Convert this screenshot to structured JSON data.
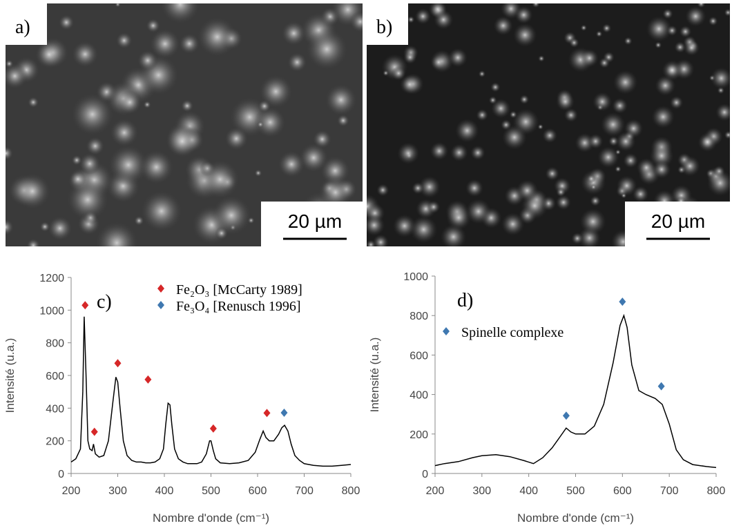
{
  "images": [
    {
      "label": "a)",
      "scale_bar": "20 µm"
    },
    {
      "label": "b)",
      "scale_bar": "20 µm"
    }
  ],
  "chart_data": [
    {
      "type": "line",
      "label": "c)",
      "xlabel": "Nombre d'onde (cm⁻¹)",
      "ylabel": "Intensité (u.a.)",
      "xlim": [
        200,
        800
      ],
      "xticks": [
        200,
        300,
        400,
        500,
        600,
        700,
        800
      ],
      "ylim": [
        0,
        1200
      ],
      "yticks": [
        0,
        200,
        400,
        600,
        800,
        1000,
        1200
      ],
      "series": [
        {
          "style": "line",
          "color": "#000000",
          "x": [
            200,
            210,
            220,
            225,
            228,
            232,
            236,
            240,
            245,
            248,
            252,
            260,
            270,
            280,
            290,
            296,
            300,
            305,
            312,
            320,
            330,
            340,
            350,
            360,
            370,
            380,
            390,
            398,
            403,
            408,
            412,
            416,
            422,
            430,
            440,
            450,
            460,
            470,
            480,
            490,
            497,
            500,
            505,
            510,
            520,
            540,
            560,
            580,
            595,
            605,
            612,
            618,
            625,
            635,
            645,
            652,
            658,
            665,
            672,
            680,
            690,
            700,
            720,
            740,
            760,
            780,
            800
          ],
          "values": [
            70,
            90,
            150,
            500,
            960,
            600,
            200,
            150,
            140,
            180,
            120,
            100,
            110,
            200,
            450,
            590,
            560,
            400,
            200,
            110,
            80,
            70,
            70,
            65,
            65,
            70,
            90,
            150,
            300,
            430,
            420,
            300,
            150,
            90,
            70,
            60,
            60,
            60,
            70,
            120,
            200,
            200,
            140,
            90,
            65,
            60,
            65,
            80,
            130,
            210,
            260,
            220,
            200,
            200,
            240,
            280,
            295,
            260,
            180,
            110,
            80,
            60,
            50,
            45,
            45,
            50,
            55
          ]
        },
        {
          "style": "markers",
          "name": "Fe₂O₃ [McCarty 1989]",
          "color": "#d62728",
          "x": [
            230,
            250,
            300,
            365,
            505,
            620
          ],
          "values": [
            1030,
            255,
            675,
            575,
            275,
            370
          ]
        },
        {
          "style": "markers",
          "name": "Fe₃O₄ [Renusch 1996]",
          "color": "#3f78b0",
          "x": [
            657
          ],
          "values": [
            372
          ]
        }
      ]
    },
    {
      "type": "line",
      "label": "d)",
      "xlabel": "Nombre d'onde (cm⁻¹)",
      "ylabel": "Intensité (u.a.)",
      "xlim": [
        200,
        800
      ],
      "xticks": [
        200,
        300,
        400,
        500,
        600,
        700,
        800
      ],
      "ylim": [
        0,
        1000
      ],
      "yticks": [
        0,
        200,
        400,
        600,
        800,
        1000
      ],
      "series": [
        {
          "style": "line",
          "color": "#000000",
          "x": [
            200,
            220,
            250,
            280,
            300,
            330,
            360,
            390,
            410,
            430,
            450,
            465,
            480,
            490,
            500,
            520,
            540,
            560,
            580,
            595,
            603,
            610,
            620,
            635,
            650,
            670,
            685,
            700,
            715,
            730,
            750,
            780,
            800
          ],
          "values": [
            40,
            50,
            60,
            80,
            90,
            95,
            85,
            65,
            50,
            80,
            130,
            180,
            230,
            210,
            200,
            200,
            240,
            350,
            560,
            750,
            800,
            740,
            550,
            420,
            400,
            380,
            350,
            250,
            120,
            70,
            45,
            35,
            30
          ]
        },
        {
          "style": "markers",
          "name": "Spinelle complexe",
          "color": "#3f78b0",
          "x": [
            480,
            600,
            683
          ],
          "values": [
            293,
            870,
            442
          ]
        }
      ]
    }
  ]
}
